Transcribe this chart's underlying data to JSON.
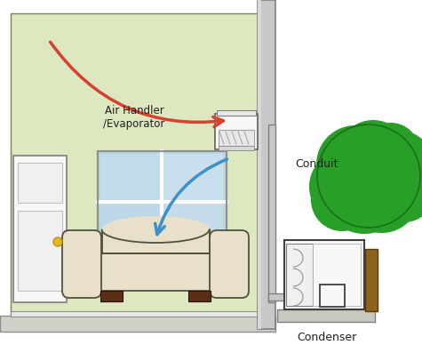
{
  "bg_color": "#ffffff",
  "room_green": "#dde8c0",
  "room_green_light": "#e8f0d0",
  "floor_color": "#d8d8d0",
  "wall_gray": "#c0c0c0",
  "wall_gray_dark": "#909090",
  "door_color": "#f5f5f5",
  "window_color": "#b8d8e8",
  "window_frame": "#d0e8f0",
  "sofa_color": "#e8e0c8",
  "sofa_outline": "#505040",
  "sofa_feet": "#5a3015",
  "tree_green": "#28a028",
  "tree_outline": "#1a7018",
  "tree_trunk": "#8b6520",
  "condenser_color": "#f0f0f0",
  "condenser_outline": "#404040",
  "conduit_color": "#c8c8c8",
  "air_handler_color": "#f8f8f8",
  "arrow_red": "#d84030",
  "arrow_red_fill": "#e87060",
  "arrow_blue": "#4090c8",
  "arrow_blue_fill": "#70b8e0",
  "text_color": "#202020",
  "label_air_handler": "Air Handler\n/Evaporator",
  "label_conduit": "Conduit",
  "label_condenser": "Condenser"
}
